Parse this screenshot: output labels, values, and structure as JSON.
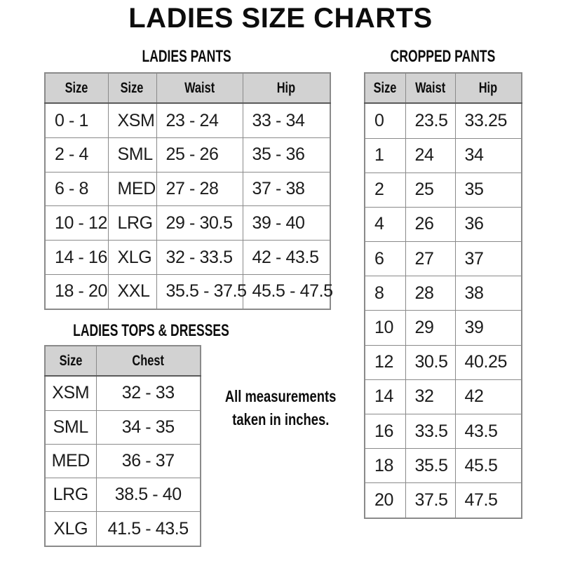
{
  "page": {
    "title": "LADIES SIZE CHARTS",
    "note_line1": "All measurements",
    "note_line2": "taken in inches."
  },
  "colors": {
    "header_bg": "#d2d2d2",
    "border": "#8a8a8a",
    "border_dark": "#5a5a5a",
    "text": "#1c1c1c"
  },
  "ladies_pants": {
    "title": "LADIES PANTS",
    "headers": [
      "Size",
      "Size",
      "Waist",
      "Hip"
    ],
    "rows": [
      [
        "0 - 1",
        "XSM",
        "23 - 24",
        "33 - 34"
      ],
      [
        "2 - 4",
        "SML",
        "25 - 26",
        "35 - 36"
      ],
      [
        "6 - 8",
        "MED",
        "27 - 28",
        "37 - 38"
      ],
      [
        "10 - 12",
        "LRG",
        "29 - 30.5",
        "39 - 40"
      ],
      [
        "14 - 16",
        "XLG",
        "32 - 33.5",
        "42 - 43.5"
      ],
      [
        "18 - 20",
        "XXL",
        "35.5 - 37.5",
        "45.5 - 47.5"
      ]
    ]
  },
  "cropped_pants": {
    "title": "CROPPED PANTS",
    "headers": [
      "Size",
      "Waist",
      "Hip"
    ],
    "rows": [
      [
        "0",
        "23.5",
        "33.25"
      ],
      [
        "1",
        "24",
        "34"
      ],
      [
        "2",
        "25",
        "35"
      ],
      [
        "4",
        "26",
        "36"
      ],
      [
        "6",
        "27",
        "37"
      ],
      [
        "8",
        "28",
        "38"
      ],
      [
        "10",
        "29",
        "39"
      ],
      [
        "12",
        "30.5",
        "40.25"
      ],
      [
        "14",
        "32",
        "42"
      ],
      [
        "16",
        "33.5",
        "43.5"
      ],
      [
        "18",
        "35.5",
        "45.5"
      ],
      [
        "20",
        "37.5",
        "47.5"
      ]
    ]
  },
  "tops_dresses": {
    "title": "LADIES TOPS & DRESSES",
    "headers": [
      "Size",
      "Chest"
    ],
    "rows": [
      [
        "XSM",
        "32 - 33"
      ],
      [
        "SML",
        "34 - 35"
      ],
      [
        "MED",
        "36 - 37"
      ],
      [
        "LRG",
        "38.5 - 40"
      ],
      [
        "XLG",
        "41.5 - 43.5"
      ]
    ]
  }
}
